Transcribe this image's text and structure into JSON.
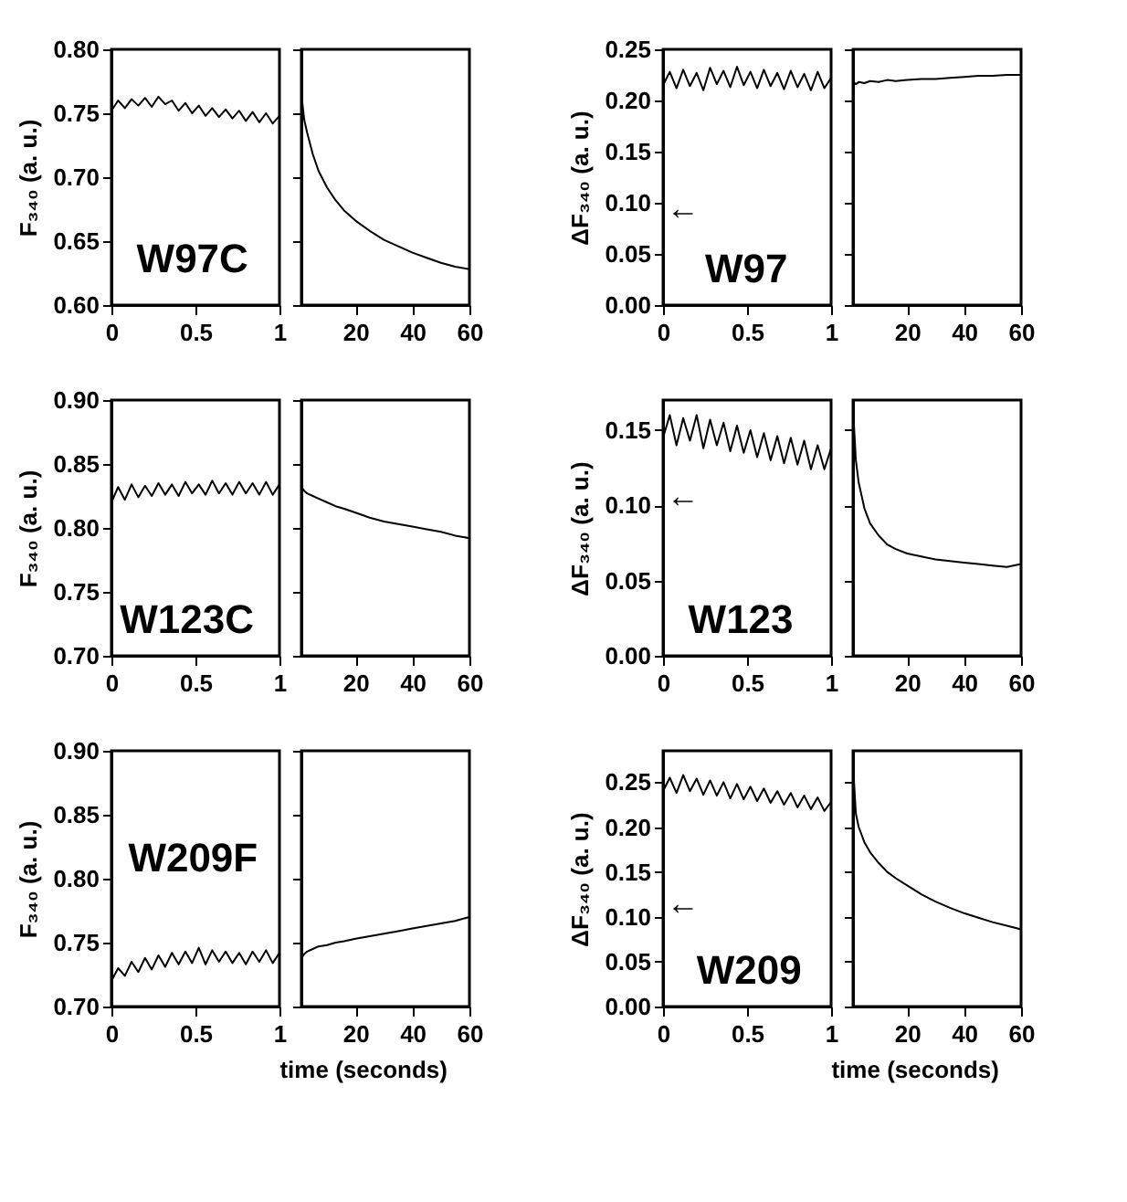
{
  "chart_data": [
    {
      "type": "line",
      "ylabel": "F₃₄₀ (a. u.)",
      "annotations": [
        "W97C"
      ],
      "xlim": [
        0,
        1
      ],
      "xticks": [
        0,
        0.5,
        1
      ],
      "ylim": [
        0.6,
        0.8
      ],
      "yticks": [
        {
          "value": 0.6,
          "label": "0.60"
        },
        {
          "value": 0.65,
          "label": "0.65"
        },
        {
          "value": 0.7,
          "label": "0.70"
        },
        {
          "value": 0.75,
          "label": "0.75"
        },
        {
          "value": 0.8,
          "label": "0.80"
        }
      ],
      "x": [
        0,
        0.04,
        0.08,
        0.12,
        0.16,
        0.2,
        0.24,
        0.28,
        0.32,
        0.36,
        0.4,
        0.44,
        0.48,
        0.52,
        0.56,
        0.6,
        0.64,
        0.68,
        0.72,
        0.76,
        0.8,
        0.84,
        0.88,
        0.92,
        0.96,
        1
      ],
      "series": [
        {
          "color": "#000000",
          "values": [
            0.752,
            0.76,
            0.754,
            0.761,
            0.756,
            0.762,
            0.755,
            0.763,
            0.757,
            0.76,
            0.752,
            0.758,
            0.75,
            0.756,
            0.748,
            0.754,
            0.747,
            0.753,
            0.746,
            0.752,
            0.744,
            0.751,
            0.743,
            0.75,
            0.742,
            0.748
          ]
        }
      ]
    },
    {
      "type": "line",
      "tick_labels": "x",
      "xlim": [
        1,
        60
      ],
      "xticks": [
        20,
        40,
        60
      ],
      "ylim": [
        0.6,
        0.8
      ],
      "yticks": [
        {
          "value": 0.6,
          "label": null
        },
        {
          "value": 0.65,
          "label": null
        },
        {
          "value": 0.7,
          "label": null
        },
        {
          "value": 0.75,
          "label": null
        },
        {
          "value": 0.8,
          "label": null
        }
      ],
      "x": [
        1,
        2,
        3,
        5,
        7,
        10,
        13,
        16,
        20,
        25,
        30,
        35,
        40,
        45,
        50,
        55,
        60
      ],
      "series": [
        {
          "color": "#000000",
          "values": [
            0.765,
            0.745,
            0.735,
            0.718,
            0.705,
            0.692,
            0.682,
            0.674,
            0.666,
            0.658,
            0.651,
            0.646,
            0.641,
            0.637,
            0.633,
            0.63,
            0.628
          ]
        }
      ]
    },
    {
      "type": "line",
      "ylabel": "ΔF₃₄₀ (a. u.)",
      "annotations": [
        "W97",
        "←"
      ],
      "xlim": [
        0,
        1
      ],
      "xticks": [
        0,
        0.5,
        1
      ],
      "ylim": [
        0,
        0.25
      ],
      "yticks": [
        {
          "value": 0,
          "label": "0.00"
        },
        {
          "value": 0.05,
          "label": "0.05"
        },
        {
          "value": 0.1,
          "label": "0.10"
        },
        {
          "value": 0.15,
          "label": "0.15"
        },
        {
          "value": 0.2,
          "label": "0.20"
        },
        {
          "value": 0.25,
          "label": "0.25"
        }
      ],
      "x": [
        0,
        0.04,
        0.08,
        0.12,
        0.16,
        0.2,
        0.24,
        0.28,
        0.32,
        0.36,
        0.4,
        0.44,
        0.48,
        0.52,
        0.56,
        0.6,
        0.64,
        0.68,
        0.72,
        0.76,
        0.8,
        0.84,
        0.88,
        0.92,
        0.96,
        1
      ],
      "series": [
        {
          "color": "#000000",
          "values": [
            0.215,
            0.228,
            0.212,
            0.23,
            0.214,
            0.227,
            0.21,
            0.232,
            0.216,
            0.229,
            0.213,
            0.233,
            0.215,
            0.228,
            0.212,
            0.23,
            0.214,
            0.227,
            0.211,
            0.229,
            0.213,
            0.226,
            0.21,
            0.228,
            0.212,
            0.222
          ]
        }
      ]
    },
    {
      "type": "line",
      "tick_labels": "x",
      "xlim": [
        1,
        60
      ],
      "xticks": [
        20,
        40,
        60
      ],
      "ylim": [
        0,
        0.25
      ],
      "yticks": [
        {
          "value": 0,
          "label": null
        },
        {
          "value": 0.05,
          "label": null
        },
        {
          "value": 0.1,
          "label": null
        },
        {
          "value": 0.15,
          "label": null
        },
        {
          "value": 0.2,
          "label": null
        },
        {
          "value": 0.25,
          "label": null
        }
      ],
      "x": [
        1,
        2,
        3,
        5,
        7,
        10,
        13,
        16,
        20,
        25,
        30,
        35,
        40,
        45,
        50,
        55,
        60
      ],
      "series": [
        {
          "color": "#000000",
          "values": [
            0.218,
            0.216,
            0.218,
            0.217,
            0.219,
            0.218,
            0.22,
            0.219,
            0.22,
            0.221,
            0.221,
            0.222,
            0.223,
            0.224,
            0.224,
            0.225,
            0.225
          ]
        }
      ]
    },
    {
      "type": "line",
      "ylabel": "F₃₄₀ (a. u.)",
      "annotations": [
        "W123C"
      ],
      "xlim": [
        0,
        1
      ],
      "xticks": [
        0,
        0.5,
        1
      ],
      "ylim": [
        0.7,
        0.9
      ],
      "yticks": [
        {
          "value": 0.7,
          "label": "0.70"
        },
        {
          "value": 0.75,
          "label": "0.75"
        },
        {
          "value": 0.8,
          "label": "0.80"
        },
        {
          "value": 0.85,
          "label": "0.85"
        },
        {
          "value": 0.9,
          "label": "0.90"
        }
      ],
      "x": [
        0,
        0.04,
        0.08,
        0.12,
        0.16,
        0.2,
        0.24,
        0.28,
        0.32,
        0.36,
        0.4,
        0.44,
        0.48,
        0.52,
        0.56,
        0.6,
        0.64,
        0.68,
        0.72,
        0.76,
        0.8,
        0.84,
        0.88,
        0.92,
        0.96,
        1
      ],
      "series": [
        {
          "color": "#000000",
          "values": [
            0.82,
            0.832,
            0.822,
            0.834,
            0.824,
            0.833,
            0.825,
            0.835,
            0.826,
            0.834,
            0.825,
            0.836,
            0.827,
            0.834,
            0.826,
            0.837,
            0.827,
            0.835,
            0.826,
            0.836,
            0.827,
            0.835,
            0.826,
            0.836,
            0.826,
            0.834
          ]
        }
      ]
    },
    {
      "type": "line",
      "tick_labels": "x",
      "xlim": [
        1,
        60
      ],
      "xticks": [
        20,
        40,
        60
      ],
      "ylim": [
        0.7,
        0.9
      ],
      "yticks": [
        {
          "value": 0.7,
          "label": null
        },
        {
          "value": 0.75,
          "label": null
        },
        {
          "value": 0.8,
          "label": null
        },
        {
          "value": 0.85,
          "label": null
        },
        {
          "value": 0.9,
          "label": null
        }
      ],
      "x": [
        1,
        2,
        3,
        5,
        7,
        10,
        13,
        16,
        20,
        25,
        30,
        35,
        40,
        45,
        50,
        55,
        60
      ],
      "series": [
        {
          "color": "#000000",
          "values": [
            0.832,
            0.829,
            0.827,
            0.825,
            0.823,
            0.82,
            0.817,
            0.815,
            0.812,
            0.808,
            0.805,
            0.803,
            0.801,
            0.799,
            0.797,
            0.794,
            0.792
          ]
        }
      ]
    },
    {
      "type": "line",
      "ylabel": "ΔF₃₄₀ (a. u.)",
      "annotations": [
        "W123",
        "←"
      ],
      "xlim": [
        0,
        1
      ],
      "xticks": [
        0,
        0.5,
        1
      ],
      "ylim": [
        0,
        0.17
      ],
      "yticks": [
        {
          "value": 0,
          "label": "0.00"
        },
        {
          "value": 0.05,
          "label": "0.05"
        },
        {
          "value": 0.1,
          "label": "0.10"
        },
        {
          "value": 0.15,
          "label": "0.15"
        }
      ],
      "x": [
        0,
        0.04,
        0.08,
        0.12,
        0.16,
        0.2,
        0.24,
        0.28,
        0.32,
        0.36,
        0.4,
        0.44,
        0.48,
        0.52,
        0.56,
        0.6,
        0.64,
        0.68,
        0.72,
        0.76,
        0.8,
        0.84,
        0.88,
        0.92,
        0.96,
        1
      ],
      "series": [
        {
          "color": "#000000",
          "values": [
            0.145,
            0.16,
            0.14,
            0.158,
            0.143,
            0.16,
            0.138,
            0.157,
            0.14,
            0.155,
            0.136,
            0.153,
            0.135,
            0.15,
            0.132,
            0.148,
            0.13,
            0.146,
            0.128,
            0.145,
            0.127,
            0.143,
            0.124,
            0.14,
            0.124,
            0.138
          ]
        }
      ]
    },
    {
      "type": "line",
      "tick_labels": "x",
      "xlim": [
        1,
        60
      ],
      "xticks": [
        20,
        40,
        60
      ],
      "ylim": [
        0,
        0.17
      ],
      "yticks": [
        {
          "value": 0,
          "label": null
        },
        {
          "value": 0.05,
          "label": null
        },
        {
          "value": 0.1,
          "label": null
        },
        {
          "value": 0.15,
          "label": null
        }
      ],
      "x": [
        1,
        2,
        3,
        5,
        7,
        10,
        13,
        16,
        20,
        25,
        30,
        35,
        40,
        45,
        50,
        55,
        60
      ],
      "series": [
        {
          "color": "#000000",
          "values": [
            0.165,
            0.13,
            0.115,
            0.098,
            0.088,
            0.08,
            0.074,
            0.071,
            0.068,
            0.066,
            0.064,
            0.063,
            0.062,
            0.061,
            0.06,
            0.059,
            0.061
          ]
        }
      ]
    },
    {
      "type": "line",
      "ylabel": "F₃₄₀ (a. u.)",
      "xlabel": "time (seconds)",
      "annotations": [
        "W209F"
      ],
      "xlim": [
        0,
        1
      ],
      "xticks": [
        0,
        0.5,
        1
      ],
      "ylim": [
        0.7,
        0.9
      ],
      "yticks": [
        {
          "value": 0.7,
          "label": "0.70"
        },
        {
          "value": 0.75,
          "label": "0.75"
        },
        {
          "value": 0.8,
          "label": "0.80"
        },
        {
          "value": 0.85,
          "label": "0.85"
        },
        {
          "value": 0.9,
          "label": "0.90"
        }
      ],
      "x": [
        0,
        0.04,
        0.08,
        0.12,
        0.16,
        0.2,
        0.24,
        0.28,
        0.32,
        0.36,
        0.4,
        0.44,
        0.48,
        0.52,
        0.56,
        0.6,
        0.64,
        0.68,
        0.72,
        0.76,
        0.8,
        0.84,
        0.88,
        0.92,
        0.96,
        1
      ],
      "series": [
        {
          "color": "#000000",
          "values": [
            0.72,
            0.73,
            0.724,
            0.735,
            0.727,
            0.738,
            0.729,
            0.74,
            0.731,
            0.742,
            0.733,
            0.743,
            0.734,
            0.746,
            0.733,
            0.744,
            0.735,
            0.743,
            0.734,
            0.742,
            0.733,
            0.743,
            0.735,
            0.744,
            0.734,
            0.742
          ]
        }
      ]
    },
    {
      "type": "line",
      "tick_labels": "x",
      "xlim": [
        1,
        60
      ],
      "xticks": [
        20,
        40,
        60
      ],
      "ylim": [
        0.7,
        0.9
      ],
      "yticks": [
        {
          "value": 0.7,
          "label": null
        },
        {
          "value": 0.75,
          "label": null
        },
        {
          "value": 0.8,
          "label": null
        },
        {
          "value": 0.85,
          "label": null
        },
        {
          "value": 0.9,
          "label": null
        }
      ],
      "x": [
        1,
        2,
        3,
        5,
        7,
        10,
        13,
        16,
        20,
        25,
        30,
        35,
        40,
        45,
        50,
        55,
        60
      ],
      "series": [
        {
          "color": "#000000",
          "values": [
            0.738,
            0.741,
            0.743,
            0.745,
            0.747,
            0.748,
            0.75,
            0.751,
            0.753,
            0.755,
            0.757,
            0.759,
            0.761,
            0.763,
            0.765,
            0.767,
            0.77
          ]
        }
      ]
    },
    {
      "type": "line",
      "ylabel": "ΔF₃₄₀ (a. u.)",
      "xlabel": "time (seconds)",
      "annotations": [
        "W209",
        "←"
      ],
      "xlim": [
        0,
        1
      ],
      "xticks": [
        0,
        0.5,
        1
      ],
      "ylim": [
        0,
        0.285
      ],
      "yticks": [
        {
          "value": 0,
          "label": "0.00"
        },
        {
          "value": 0.05,
          "label": "0.05"
        },
        {
          "value": 0.1,
          "label": "0.10"
        },
        {
          "value": 0.15,
          "label": "0.15"
        },
        {
          "value": 0.2,
          "label": "0.20"
        },
        {
          "value": 0.25,
          "label": "0.25"
        }
      ],
      "x": [
        0,
        0.04,
        0.08,
        0.12,
        0.16,
        0.2,
        0.24,
        0.28,
        0.32,
        0.36,
        0.4,
        0.44,
        0.48,
        0.52,
        0.56,
        0.6,
        0.64,
        0.68,
        0.72,
        0.76,
        0.8,
        0.84,
        0.88,
        0.92,
        0.96,
        1
      ],
      "series": [
        {
          "color": "#000000",
          "values": [
            0.24,
            0.255,
            0.238,
            0.258,
            0.24,
            0.254,
            0.236,
            0.252,
            0.235,
            0.25,
            0.232,
            0.248,
            0.231,
            0.245,
            0.229,
            0.243,
            0.227,
            0.24,
            0.225,
            0.238,
            0.222,
            0.235,
            0.22,
            0.233,
            0.218,
            0.228
          ]
        }
      ]
    },
    {
      "type": "line",
      "tick_labels": "x",
      "xlim": [
        1,
        60
      ],
      "xticks": [
        20,
        40,
        60
      ],
      "ylim": [
        0,
        0.285
      ],
      "yticks": [
        {
          "value": 0,
          "label": null
        },
        {
          "value": 0.05,
          "label": null
        },
        {
          "value": 0.1,
          "label": null
        },
        {
          "value": 0.15,
          "label": null
        },
        {
          "value": 0.2,
          "label": null
        },
        {
          "value": 0.25,
          "label": null
        }
      ],
      "x": [
        1,
        2,
        3,
        5,
        7,
        10,
        13,
        16,
        20,
        25,
        30,
        35,
        40,
        45,
        50,
        55,
        60
      ],
      "series": [
        {
          "color": "#000000",
          "values": [
            0.27,
            0.215,
            0.2,
            0.183,
            0.172,
            0.16,
            0.15,
            0.143,
            0.135,
            0.125,
            0.117,
            0.11,
            0.104,
            0.099,
            0.094,
            0.09,
            0.086
          ]
        }
      ]
    }
  ]
}
